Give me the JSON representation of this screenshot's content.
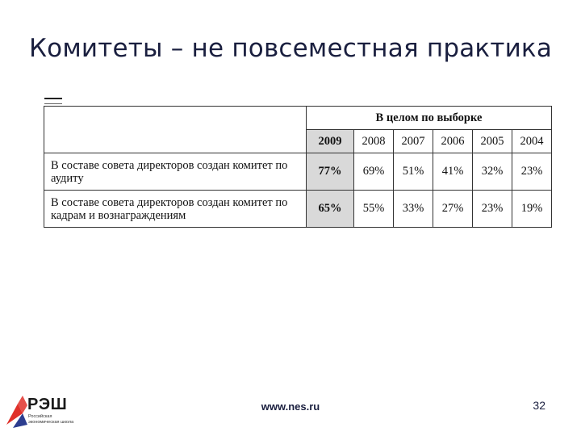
{
  "slide": {
    "title": "Комитеты – не повсеместная практика",
    "footer_url": "www.nes.ru",
    "page_number": "32"
  },
  "table": {
    "group_header": "В целом по выборке",
    "years": [
      "2009",
      "2008",
      "2007",
      "2006",
      "2005",
      "2004"
    ],
    "rows": [
      {
        "label": "В составе совета директоров создан комитет по аудиту",
        "values": [
          "77%",
          "69%",
          "51%",
          "41%",
          "32%",
          "23%"
        ]
      },
      {
        "label": "В составе совета директоров создан комитет по кадрам и вознаграждениям",
        "values": [
          "65%",
          "55%",
          "33%",
          "27%",
          "23%",
          "19%"
        ]
      }
    ],
    "highlight_color": "#d9d9d9"
  },
  "logo": {
    "name": "РЭШ",
    "subtitle": "Российская экономическая школа",
    "colors": {
      "red": "#e0312a",
      "blue": "#2c3d8f"
    }
  }
}
